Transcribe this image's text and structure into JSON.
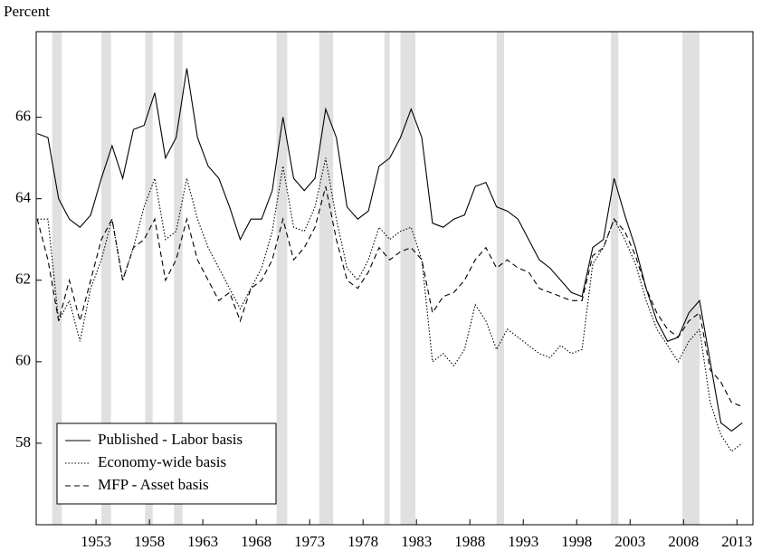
{
  "chart_data": {
    "type": "line",
    "y_label": "Percent",
    "x": [
      1947.5,
      1948.5,
      1949.5,
      1950.5,
      1951.5,
      1952.5,
      1953.5,
      1954.5,
      1955.5,
      1956.5,
      1957.5,
      1958.5,
      1959.5,
      1960.5,
      1961.5,
      1962.5,
      1963.5,
      1964.5,
      1965.5,
      1966.5,
      1967.5,
      1968.5,
      1969.5,
      1970.5,
      1971.5,
      1972.5,
      1973.5,
      1974.5,
      1975.5,
      1976.5,
      1977.5,
      1978.5,
      1979.5,
      1980.5,
      1981.5,
      1982.5,
      1983.5,
      1984.5,
      1985.5,
      1986.5,
      1987.5,
      1988.5,
      1989.5,
      1990.5,
      1991.5,
      1992.5,
      1993.5,
      1994.5,
      1995.5,
      1996.5,
      1997.5,
      1998.5,
      1999.5,
      2000.5,
      2001.5,
      2002.5,
      2003.5,
      2004.5,
      2005.5,
      2006.5,
      2007.5,
      2008.5,
      2009.5,
      2010.5,
      2011.5,
      2012.5,
      2013.5
    ],
    "series": [
      {
        "name": "Published - Labor basis",
        "color": "#000000",
        "dash": "solid",
        "values": [
          65.6,
          65.5,
          64.0,
          63.5,
          63.3,
          63.6,
          64.5,
          65.3,
          64.5,
          65.7,
          65.8,
          66.6,
          65.0,
          65.5,
          67.2,
          65.5,
          64.8,
          64.5,
          63.8,
          63.0,
          63.5,
          63.5,
          64.2,
          66.0,
          64.5,
          64.2,
          64.5,
          66.2,
          65.5,
          63.8,
          63.5,
          63.7,
          64.8,
          65.0,
          65.5,
          66.2,
          65.5,
          63.4,
          63.3,
          63.5,
          63.6,
          64.3,
          64.4,
          63.8,
          63.7,
          63.5,
          63.0,
          62.5,
          62.3,
          62.0,
          61.7,
          61.6,
          62.8,
          63.0,
          64.5,
          63.6,
          62.8,
          61.8,
          61.0,
          60.5,
          60.6,
          61.2,
          61.5,
          60.0,
          58.5,
          58.3,
          58.5
        ]
      },
      {
        "name": "Economy-wide basis",
        "color": "#000000",
        "dash": "dotted",
        "values": [
          63.5,
          63.5,
          61.0,
          61.5,
          60.5,
          61.8,
          62.5,
          63.5,
          62.0,
          62.8,
          63.8,
          64.5,
          63.0,
          63.2,
          64.5,
          63.5,
          62.8,
          62.3,
          61.8,
          61.3,
          61.8,
          62.3,
          63.2,
          64.8,
          63.3,
          63.2,
          63.8,
          65.0,
          63.5,
          62.3,
          62.0,
          62.5,
          63.3,
          63.0,
          63.2,
          63.3,
          62.5,
          60.0,
          60.2,
          59.9,
          60.3,
          61.4,
          61.0,
          60.3,
          60.8,
          60.6,
          60.4,
          60.2,
          60.1,
          60.4,
          60.2,
          60.3,
          62.4,
          62.8,
          63.5,
          63.0,
          62.4,
          61.5,
          60.8,
          60.4,
          60.0,
          60.5,
          60.8,
          59.0,
          58.2,
          57.8,
          58.0
        ]
      },
      {
        "name": "MFP - Asset basis",
        "color": "#000000",
        "dash": "dashed",
        "values": [
          63.5,
          62.5,
          61.0,
          62.0,
          61.0,
          62.0,
          63.0,
          63.5,
          62.0,
          62.8,
          63.0,
          63.5,
          62.0,
          62.5,
          63.5,
          62.5,
          62.0,
          61.5,
          61.7,
          61.0,
          61.8,
          62.0,
          62.5,
          63.5,
          62.5,
          62.8,
          63.3,
          64.3,
          63.0,
          62.0,
          61.8,
          62.2,
          62.8,
          62.5,
          62.7,
          62.8,
          62.5,
          61.2,
          61.6,
          61.7,
          62.0,
          62.5,
          62.8,
          62.3,
          62.5,
          62.3,
          62.2,
          61.8,
          61.7,
          61.6,
          61.5,
          61.5,
          62.6,
          62.8,
          63.5,
          63.2,
          62.6,
          61.8,
          61.2,
          60.8,
          60.6,
          61.0,
          61.2,
          59.8,
          59.5,
          59.0,
          58.9
        ]
      }
    ],
    "shaded_periods": [
      [
        1948.9,
        1949.8
      ],
      [
        1953.5,
        1954.4
      ],
      [
        1957.6,
        1958.3
      ],
      [
        1960.3,
        1961.1
      ],
      [
        1969.9,
        1970.9
      ],
      [
        1973.9,
        1975.2
      ],
      [
        1980.0,
        1980.5
      ],
      [
        1981.5,
        1982.9
      ],
      [
        1990.5,
        1991.2
      ],
      [
        2001.2,
        2001.9
      ],
      [
        2007.9,
        2009.5
      ]
    ],
    "shade_color": "#e0e0e0",
    "xlim": [
      1947.4,
      2014.5
    ],
    "xticks": [
      1953,
      1958,
      1963,
      1968,
      1973,
      1978,
      1983,
      1988,
      1993,
      1998,
      2003,
      2008,
      2013
    ],
    "ylim": [
      56,
      68.1
    ],
    "yticks": [
      58,
      60,
      62,
      64,
      66
    ],
    "legend": "lower left"
  }
}
